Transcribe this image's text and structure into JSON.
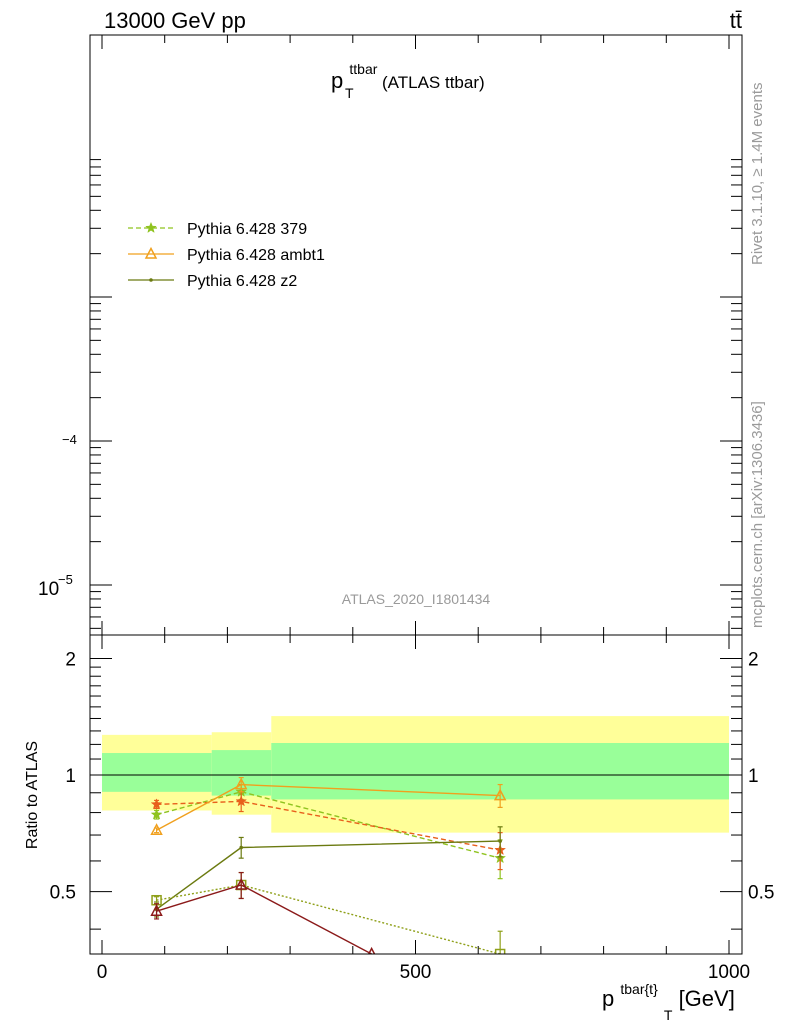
{
  "header": {
    "left": "13000 GeV pp",
    "right": "tt̄"
  },
  "side_labels": {
    "rivet": "Rivet 3.1.10, ≥ 1.4M events",
    "mcplots": "mcplots.cern.ch [arXiv:1306.3436]"
  },
  "chart_data": [
    {
      "panel": "main",
      "type": "line",
      "title": "p_T^ttbar (ATLAS ttbar)",
      "title_main": "p",
      "title_sup": "ttbar",
      "title_sub": "T",
      "title_rest": "(ATLAS ttbar)",
      "y_scale": "log",
      "y_tick_labels": [
        {
          "value": 0.0001,
          "base": "",
          "exp": "−4"
        },
        {
          "value": 1e-05,
          "base": "10",
          "exp": "−5"
        }
      ],
      "watermark": "ATLAS_2020_I1801434",
      "legend_position": "top-left",
      "legend": [
        {
          "name": "Pythia 6.428 379",
          "color": "#8fc31f",
          "style": "dashed",
          "marker": "star"
        },
        {
          "name": "Pythia 6.428 ambt1",
          "color": "#f0a01e",
          "style": "solid",
          "marker": "triangle-open"
        },
        {
          "name": "Pythia 6.428 z2",
          "color": "#6b7a10",
          "style": "solid",
          "marker": "dot"
        }
      ]
    },
    {
      "panel": "ratio",
      "type": "line",
      "ylabel": "Ratio to ATLAS",
      "xlabel_main": "p",
      "xlabel_sup": "tbar{t}",
      "xlabel_sub": "T",
      "xlabel_rest": " [GeV]",
      "xlim": [
        -25,
        1000
      ],
      "ylim": [
        0.345,
        2.3
      ],
      "y_scale": "log",
      "x_ticks": [
        0,
        500,
        1000
      ],
      "y_ticks": [
        0.5,
        1,
        2
      ],
      "reference_line": 1,
      "bands": [
        {
          "x": [
            0,
            175
          ],
          "green": [
            0.905,
            1.14
          ],
          "yellow": [
            0.81,
            1.27
          ]
        },
        {
          "x": [
            175,
            270
          ],
          "green": [
            0.885,
            1.16
          ],
          "yellow": [
            0.79,
            1.29
          ]
        },
        {
          "x": [
            270,
            1000
          ],
          "green": [
            0.865,
            1.21
          ],
          "yellow": [
            0.71,
            1.42
          ]
        }
      ],
      "series": [
        {
          "name": "Pythia 6.428 379",
          "color": "#8fc31f",
          "style": "dashed",
          "marker": "star",
          "x": [
            87,
            222,
            635
          ],
          "y": [
            0.79,
            0.905,
            0.61
          ],
          "err": [
            0.02,
            0.04,
            0.07
          ]
        },
        {
          "color": "#e8601c",
          "style": "dashed",
          "marker": "star",
          "x": [
            87,
            222,
            635
          ],
          "y": [
            0.84,
            0.855,
            0.64
          ],
          "err": [
            0.02,
            0.05,
            0.07
          ]
        },
        {
          "name": "Pythia 6.428 ambt1",
          "color": "#f0a01e",
          "style": "solid",
          "marker": "triangle-open",
          "x": [
            87,
            222,
            635
          ],
          "y": [
            0.72,
            0.945,
            0.885
          ],
          "err": [
            0.01,
            0.04,
            0.06
          ]
        },
        {
          "name": "Pythia 6.428 z2",
          "color": "#6b7a10",
          "style": "solid",
          "marker": "dot",
          "x": [
            87,
            222,
            635
          ],
          "y": [
            0.45,
            0.65,
            0.675
          ],
          "err": [
            0.02,
            0.04,
            0.06
          ]
        },
        {
          "color": "#8fa01a",
          "style": "dotted",
          "marker": "square-open",
          "x": [
            87,
            222,
            635
          ],
          "y": [
            0.475,
            0.52,
            0.345
          ],
          "err": [
            0.01,
            0.04,
            0.05
          ]
        },
        {
          "color": "#8b1a1a",
          "style": "solid",
          "marker": "triangle-open",
          "x": [
            87,
            222,
            430
          ],
          "y": [
            0.445,
            0.52,
            0.345
          ],
          "err": [
            0.02,
            0.04,
            0
          ]
        }
      ]
    }
  ]
}
